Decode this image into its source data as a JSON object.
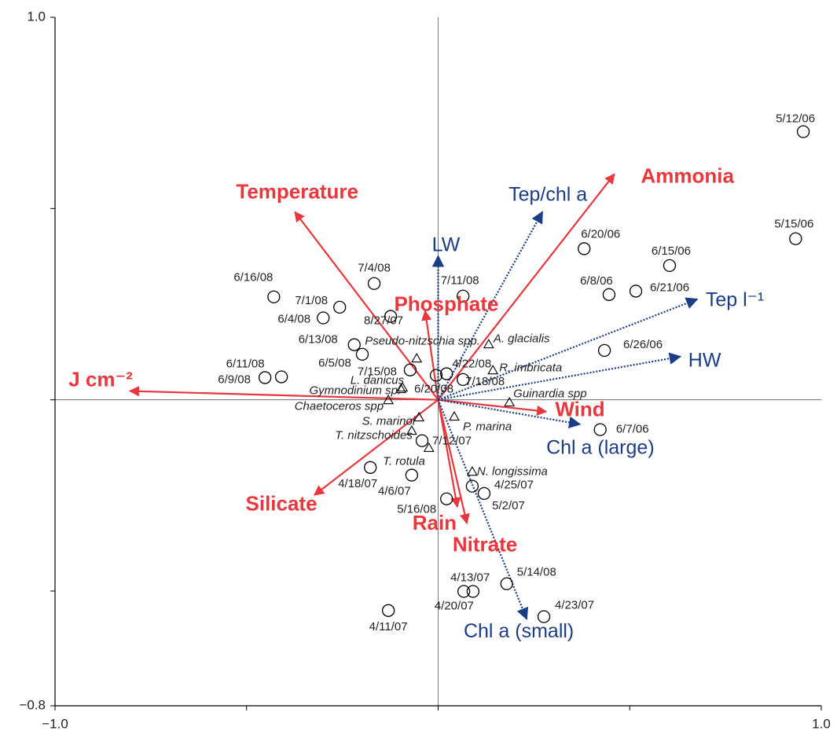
{
  "chart_data": {
    "type": "biplot",
    "xlim": [
      -1.0,
      1.0
    ],
    "ylim": [
      -0.8,
      1.0
    ],
    "xticks": [
      {
        "value": -1.0,
        "label": "−1.0"
      },
      {
        "value": -0.5,
        "label": null
      },
      {
        "value": 0,
        "label": null
      },
      {
        "value": 0.5,
        "label": null
      },
      {
        "value": 1.0,
        "label": "1.0"
      }
    ],
    "yticks": [
      {
        "value": 1.0,
        "label": "1.0"
      },
      {
        "value": 0.5,
        "label": null
      },
      {
        "value": 0,
        "label": null
      },
      {
        "value": -0.5,
        "label": null
      },
      {
        "value": -0.8,
        "label": "−0.8"
      }
    ],
    "zero_lines": true,
    "vector_sets": [
      {
        "color": "#e8373d",
        "style": "solid",
        "vectors": [
          {
            "name": "Temperature",
            "x": -0.374,
            "y": 0.491
          },
          {
            "name": "Ammonia",
            "x": 0.46,
            "y": 0.59
          },
          {
            "name": "Phosphate",
            "x": -0.034,
            "y": 0.232
          },
          {
            "name": "J cm⁻²",
            "x": -0.805,
            "y": 0.023
          },
          {
            "name": "Wind",
            "x": 0.282,
            "y": -0.031
          },
          {
            "name": "Silicate",
            "x": -0.323,
            "y": -0.249
          },
          {
            "name": "Rain",
            "x": 0.05,
            "y": -0.28
          },
          {
            "name": "Nitrate",
            "x": 0.075,
            "y": -0.323
          }
        ]
      },
      {
        "color": "#1b3d86",
        "style": "dotted",
        "vectors": [
          {
            "name": "Tep/chl a",
            "x": 0.272,
            "y": 0.491
          },
          {
            "name": "LW",
            "x": 0.0,
            "y": 0.376
          },
          {
            "name": "Tep l⁻¹",
            "x": 0.676,
            "y": 0.263
          },
          {
            "name": "HW",
            "x": 0.632,
            "y": 0.113
          },
          {
            "name": "Chl a (large)",
            "x": 0.37,
            "y": -0.064
          },
          {
            "name": "Chl a (small)",
            "x": 0.231,
            "y": -0.573
          }
        ]
      }
    ],
    "sites": {
      "marker": "circle",
      "points": [
        {
          "label": "5/12/06",
          "x": 0.953,
          "y": 0.701
        },
        {
          "label": "5/15/06",
          "x": 0.933,
          "y": 0.421
        },
        {
          "label": "6/20/06",
          "x": 0.381,
          "y": 0.395
        },
        {
          "label": "6/15/06",
          "x": 0.604,
          "y": 0.351
        },
        {
          "label": "6/8/06",
          "x": 0.446,
          "y": 0.275
        },
        {
          "label": "6/21/06",
          "x": 0.516,
          "y": 0.284
        },
        {
          "label": "6/26/06",
          "x": 0.434,
          "y": 0.129
        },
        {
          "label": "6/7/06",
          "x": 0.423,
          "y": -0.078
        },
        {
          "label": "7/4/08",
          "x": -0.167,
          "y": 0.304
        },
        {
          "label": "6/16/08",
          "x": -0.429,
          "y": 0.269
        },
        {
          "label": "7/1/08",
          "x": -0.257,
          "y": 0.242
        },
        {
          "label": "6/4/08",
          "x": -0.3,
          "y": 0.214
        },
        {
          "label": "8/27/07",
          "x": -0.124,
          "y": 0.218
        },
        {
          "label": "7/11/08",
          "x": 0.065,
          "y": 0.271
        },
        {
          "label": "6/13/08",
          "x": -0.219,
          "y": 0.144
        },
        {
          "label": "6/5/08",
          "x": -0.198,
          "y": 0.119
        },
        {
          "label": "6/11/08",
          "x": -0.409,
          "y": 0.06
        },
        {
          "label": "6/9/08",
          "x": -0.452,
          "y": 0.058
        },
        {
          "label": "7/15/08",
          "x": -0.073,
          "y": 0.078
        },
        {
          "label": "4/22/08",
          "x": 0.022,
          "y": 0.068
        },
        {
          "label": "6/20/08",
          "x": -0.005,
          "y": 0.064
        },
        {
          "label": "7/18/08",
          "x": 0.065,
          "y": 0.053
        },
        {
          "label": "7/12/07",
          "x": -0.042,
          "y": -0.107
        },
        {
          "label": "4/18/07",
          "x": -0.177,
          "y": -0.177
        },
        {
          "label": "4/6/07",
          "x": -0.069,
          "y": -0.197
        },
        {
          "label": "5/16/08",
          "x": 0.022,
          "y": -0.259
        },
        {
          "label": "4/25/07",
          "x": 0.089,
          "y": -0.226
        },
        {
          "label": "5/2/07",
          "x": 0.12,
          "y": -0.245
        },
        {
          "label": "4/13/07",
          "x": 0.067,
          "y": -0.501
        },
        {
          "label": "4/20/07",
          "x": 0.091,
          "y": -0.501
        },
        {
          "label": "5/14/08",
          "x": 0.179,
          "y": -0.481
        },
        {
          "label": "4/23/07",
          "x": 0.276,
          "y": -0.567
        },
        {
          "label": "4/11/07",
          "x": -0.13,
          "y": -0.551
        }
      ]
    },
    "species": {
      "marker": "triangle",
      "points": [
        {
          "label": "A. glacialis",
          "x": 0.132,
          "y": 0.144
        },
        {
          "label": "Pseudo-nitzschia spp.",
          "x": -0.056,
          "y": 0.107
        },
        {
          "label": "R. imbricata",
          "x": 0.143,
          "y": 0.076
        },
        {
          "label": "L. danicus",
          "x": -0.093,
          "y": 0.031
        },
        {
          "label": "Gymnodinium sp.",
          "x": -0.097,
          "y": 0.027
        },
        {
          "label": "Guinardia spp",
          "x": 0.186,
          "y": -0.008
        },
        {
          "label": "Chaetoceros spp",
          "x": -0.13,
          "y": -0.002
        },
        {
          "label": "S. marinoi",
          "x": -0.05,
          "y": -0.047
        },
        {
          "label": "P. marina",
          "x": 0.042,
          "y": -0.045
        },
        {
          "label": "T. nitzschoides",
          "x": -0.069,
          "y": -0.082
        },
        {
          "label": "T. rotula",
          "x": -0.024,
          "y": -0.127
        },
        {
          "label": "N. longissima",
          "x": 0.089,
          "y": -0.189
        }
      ]
    }
  }
}
